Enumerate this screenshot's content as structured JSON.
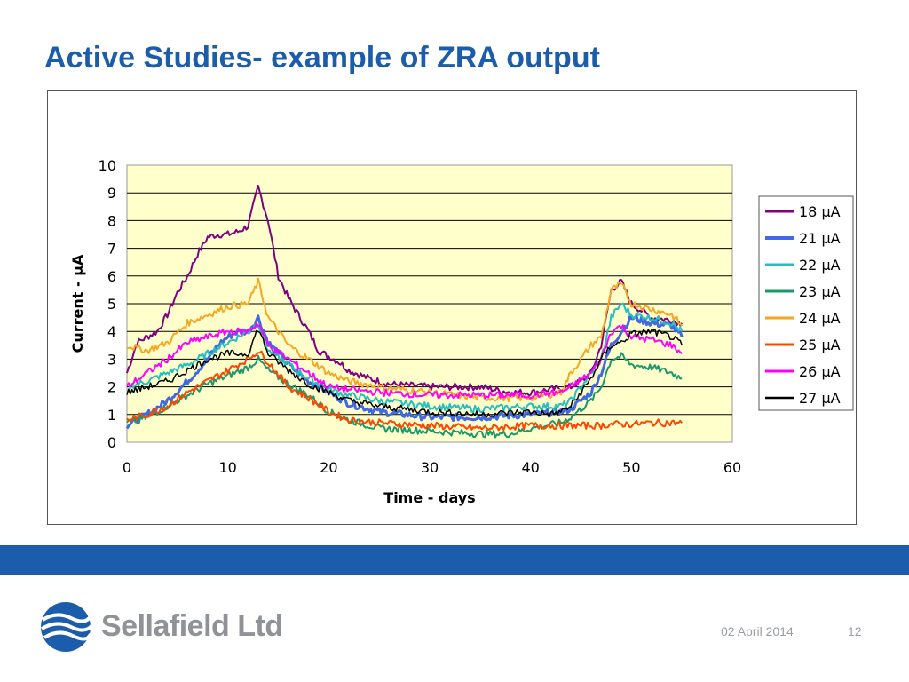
{
  "slide": {
    "title": "Active Studies- example of ZRA output",
    "footer_date": "02 April 2014",
    "page_number": "12",
    "logo_text": "Sellafield Ltd"
  },
  "colors": {
    "title": "#1b5dab",
    "band": "#1b5dab",
    "plot_bg": "#ffffcc",
    "logo_text": "#8f9296"
  },
  "chart_data": {
    "type": "line",
    "xlabel": "Time - days",
    "ylabel": "Current - µA",
    "xlim": [
      0,
      60
    ],
    "ylim": [
      0,
      10
    ],
    "x_ticks": [
      "0",
      "10",
      "20",
      "30",
      "40",
      "50",
      "60"
    ],
    "y_ticks": [
      "0",
      "1",
      "2",
      "3",
      "4",
      "5",
      "6",
      "7",
      "8",
      "9",
      "10"
    ],
    "grid": "horizontal",
    "legend_position": "right",
    "series": [
      {
        "name": "18 µA",
        "color": "#800080",
        "width": 2,
        "points": [
          [
            0,
            2.5
          ],
          [
            1,
            3.6
          ],
          [
            2,
            3.8
          ],
          [
            3,
            4.0
          ],
          [
            4,
            4.6
          ],
          [
            5,
            5.4
          ],
          [
            6,
            6.0
          ],
          [
            7,
            6.8
          ],
          [
            8,
            7.4
          ],
          [
            9,
            7.5
          ],
          [
            10,
            7.5
          ],
          [
            11,
            7.6
          ],
          [
            12,
            7.8
          ],
          [
            13,
            9.2
          ],
          [
            14,
            8.0
          ],
          [
            15,
            6.0
          ],
          [
            16,
            5.2
          ],
          [
            17,
            4.6
          ],
          [
            18,
            4.0
          ],
          [
            19,
            3.3
          ],
          [
            20,
            3.1
          ],
          [
            21,
            2.9
          ],
          [
            22,
            2.6
          ],
          [
            24,
            2.3
          ],
          [
            26,
            2.1
          ],
          [
            30,
            2.0
          ],
          [
            35,
            2.0
          ],
          [
            38,
            1.8
          ],
          [
            40,
            1.8
          ],
          [
            42,
            1.9
          ],
          [
            44,
            2.0
          ],
          [
            45,
            2.2
          ],
          [
            46,
            2.5
          ],
          [
            47,
            3.5
          ],
          [
            48,
            5.5
          ],
          [
            49,
            5.8
          ],
          [
            50,
            5.0
          ],
          [
            52,
            4.5
          ],
          [
            54,
            4.4
          ],
          [
            55,
            4.3
          ]
        ]
      },
      {
        "name": "21 µA",
        "color": "#4169e1",
        "width": 3,
        "points": [
          [
            0,
            0.6
          ],
          [
            2,
            1.0
          ],
          [
            4,
            1.5
          ],
          [
            6,
            2.2
          ],
          [
            8,
            3.0
          ],
          [
            9,
            3.5
          ],
          [
            10,
            3.8
          ],
          [
            11,
            4.0
          ],
          [
            12,
            4.0
          ],
          [
            13,
            4.5
          ],
          [
            14,
            3.6
          ],
          [
            16,
            2.8
          ],
          [
            18,
            2.2
          ],
          [
            20,
            1.8
          ],
          [
            22,
            1.4
          ],
          [
            25,
            1.1
          ],
          [
            30,
            0.9
          ],
          [
            35,
            0.9
          ],
          [
            40,
            1.0
          ],
          [
            43,
            1.1
          ],
          [
            44,
            1.2
          ],
          [
            46,
            1.8
          ],
          [
            47,
            2.5
          ],
          [
            48,
            3.5
          ],
          [
            49,
            4.0
          ],
          [
            50,
            4.5
          ],
          [
            52,
            4.3
          ],
          [
            54,
            4.2
          ],
          [
            55,
            3.8
          ]
        ]
      },
      {
        "name": "22 µA",
        "color": "#20c0c0",
        "width": 2,
        "points": [
          [
            0,
            2.0
          ],
          [
            2,
            2.2
          ],
          [
            4,
            2.5
          ],
          [
            6,
            2.8
          ],
          [
            8,
            3.2
          ],
          [
            10,
            3.6
          ],
          [
            12,
            4.0
          ],
          [
            13,
            4.3
          ],
          [
            14,
            3.3
          ],
          [
            16,
            2.8
          ],
          [
            18,
            2.3
          ],
          [
            20,
            1.9
          ],
          [
            22,
            1.7
          ],
          [
            25,
            1.5
          ],
          [
            30,
            1.3
          ],
          [
            35,
            1.2
          ],
          [
            40,
            1.3
          ],
          [
            43,
            1.3
          ],
          [
            44,
            1.5
          ],
          [
            46,
            2.5
          ],
          [
            47,
            3.0
          ],
          [
            48,
            4.5
          ],
          [
            49,
            5.0
          ],
          [
            50,
            4.6
          ],
          [
            52,
            4.5
          ],
          [
            54,
            4.3
          ],
          [
            55,
            4.0
          ]
        ]
      },
      {
        "name": "23 µA",
        "color": "#1a9a6a",
        "width": 2,
        "points": [
          [
            0,
            0.7
          ],
          [
            2,
            0.9
          ],
          [
            4,
            1.3
          ],
          [
            6,
            1.7
          ],
          [
            8,
            2.1
          ],
          [
            10,
            2.4
          ],
          [
            12,
            2.7
          ],
          [
            13,
            3.0
          ],
          [
            14,
            2.6
          ],
          [
            16,
            2.1
          ],
          [
            18,
            1.7
          ],
          [
            20,
            1.1
          ],
          [
            22,
            0.8
          ],
          [
            25,
            0.5
          ],
          [
            30,
            0.4
          ],
          [
            35,
            0.3
          ],
          [
            38,
            0.3
          ],
          [
            40,
            0.5
          ],
          [
            43,
            0.7
          ],
          [
            44,
            0.9
          ],
          [
            46,
            1.5
          ],
          [
            47,
            2.0
          ],
          [
            48,
            3.0
          ],
          [
            49,
            3.1
          ],
          [
            50,
            2.8
          ],
          [
            52,
            2.7
          ],
          [
            54,
            2.5
          ],
          [
            55,
            2.3
          ]
        ]
      },
      {
        "name": "24 µA",
        "color": "#f5a623",
        "width": 2,
        "points": [
          [
            0,
            3.5
          ],
          [
            2,
            3.3
          ],
          [
            4,
            3.6
          ],
          [
            6,
            4.3
          ],
          [
            8,
            4.6
          ],
          [
            10,
            4.9
          ],
          [
            12,
            5.0
          ],
          [
            13,
            5.8
          ],
          [
            14,
            4.5
          ],
          [
            16,
            3.5
          ],
          [
            18,
            3.0
          ],
          [
            20,
            2.5
          ],
          [
            22,
            2.2
          ],
          [
            25,
            2.0
          ],
          [
            30,
            1.8
          ],
          [
            35,
            1.6
          ],
          [
            40,
            1.6
          ],
          [
            43,
            1.8
          ],
          [
            44,
            2.5
          ],
          [
            46,
            3.5
          ],
          [
            47,
            3.8
          ],
          [
            48,
            5.5
          ],
          [
            49,
            5.7
          ],
          [
            50,
            5.0
          ],
          [
            52,
            4.8
          ],
          [
            54,
            4.6
          ],
          [
            55,
            4.2
          ]
        ]
      },
      {
        "name": "25 µA",
        "color": "#ff4500",
        "width": 2,
        "points": [
          [
            0,
            0.8
          ],
          [
            2,
            1.0
          ],
          [
            4,
            1.3
          ],
          [
            6,
            1.8
          ],
          [
            8,
            2.2
          ],
          [
            10,
            2.6
          ],
          [
            12,
            3.0
          ],
          [
            13,
            3.3
          ],
          [
            14,
            2.9
          ],
          [
            16,
            2.0
          ],
          [
            18,
            1.6
          ],
          [
            20,
            1.1
          ],
          [
            22,
            0.8
          ],
          [
            25,
            0.7
          ],
          [
            30,
            0.6
          ],
          [
            35,
            0.5
          ],
          [
            40,
            0.6
          ],
          [
            43,
            0.6
          ],
          [
            45,
            0.6
          ],
          [
            47,
            0.6
          ],
          [
            48,
            0.65
          ],
          [
            50,
            0.65
          ],
          [
            52,
            0.7
          ],
          [
            54,
            0.7
          ],
          [
            55,
            0.7
          ]
        ]
      },
      {
        "name": "26 µA",
        "color": "#ff00ff",
        "width": 2,
        "points": [
          [
            0,
            2.0
          ],
          [
            2,
            2.5
          ],
          [
            4,
            3.0
          ],
          [
            6,
            3.6
          ],
          [
            8,
            3.8
          ],
          [
            10,
            4.0
          ],
          [
            12,
            4.0
          ],
          [
            13,
            4.3
          ],
          [
            14,
            3.5
          ],
          [
            16,
            3.0
          ],
          [
            18,
            2.5
          ],
          [
            20,
            2.0
          ],
          [
            22,
            1.9
          ],
          [
            25,
            1.8
          ],
          [
            30,
            1.7
          ],
          [
            35,
            1.7
          ],
          [
            40,
            1.7
          ],
          [
            43,
            1.8
          ],
          [
            44,
            2.0
          ],
          [
            46,
            2.5
          ],
          [
            47,
            3.0
          ],
          [
            48,
            4.0
          ],
          [
            49,
            4.2
          ],
          [
            50,
            3.8
          ],
          [
            52,
            3.7
          ],
          [
            54,
            3.5
          ],
          [
            55,
            3.2
          ]
        ]
      },
      {
        "name": "27 µA",
        "color": "#000000",
        "width": 1.5,
        "points": [
          [
            0,
            1.8
          ],
          [
            2,
            2.0
          ],
          [
            4,
            2.2
          ],
          [
            6,
            2.6
          ],
          [
            8,
            3.0
          ],
          [
            10,
            3.2
          ],
          [
            12,
            3.2
          ],
          [
            13,
            4.1
          ],
          [
            14,
            3.2
          ],
          [
            16,
            2.6
          ],
          [
            18,
            2.1
          ],
          [
            20,
            1.8
          ],
          [
            22,
            1.5
          ],
          [
            25,
            1.3
          ],
          [
            30,
            1.1
          ],
          [
            35,
            1.0
          ],
          [
            40,
            1.1
          ],
          [
            42,
            1.0
          ],
          [
            43,
            1.1
          ],
          [
            44,
            1.3
          ],
          [
            46,
            2.3
          ],
          [
            47,
            3.0
          ],
          [
            48,
            3.5
          ],
          [
            49,
            3.6
          ],
          [
            50,
            3.9
          ],
          [
            52,
            4.0
          ],
          [
            54,
            3.8
          ],
          [
            55,
            3.5
          ]
        ]
      }
    ]
  }
}
